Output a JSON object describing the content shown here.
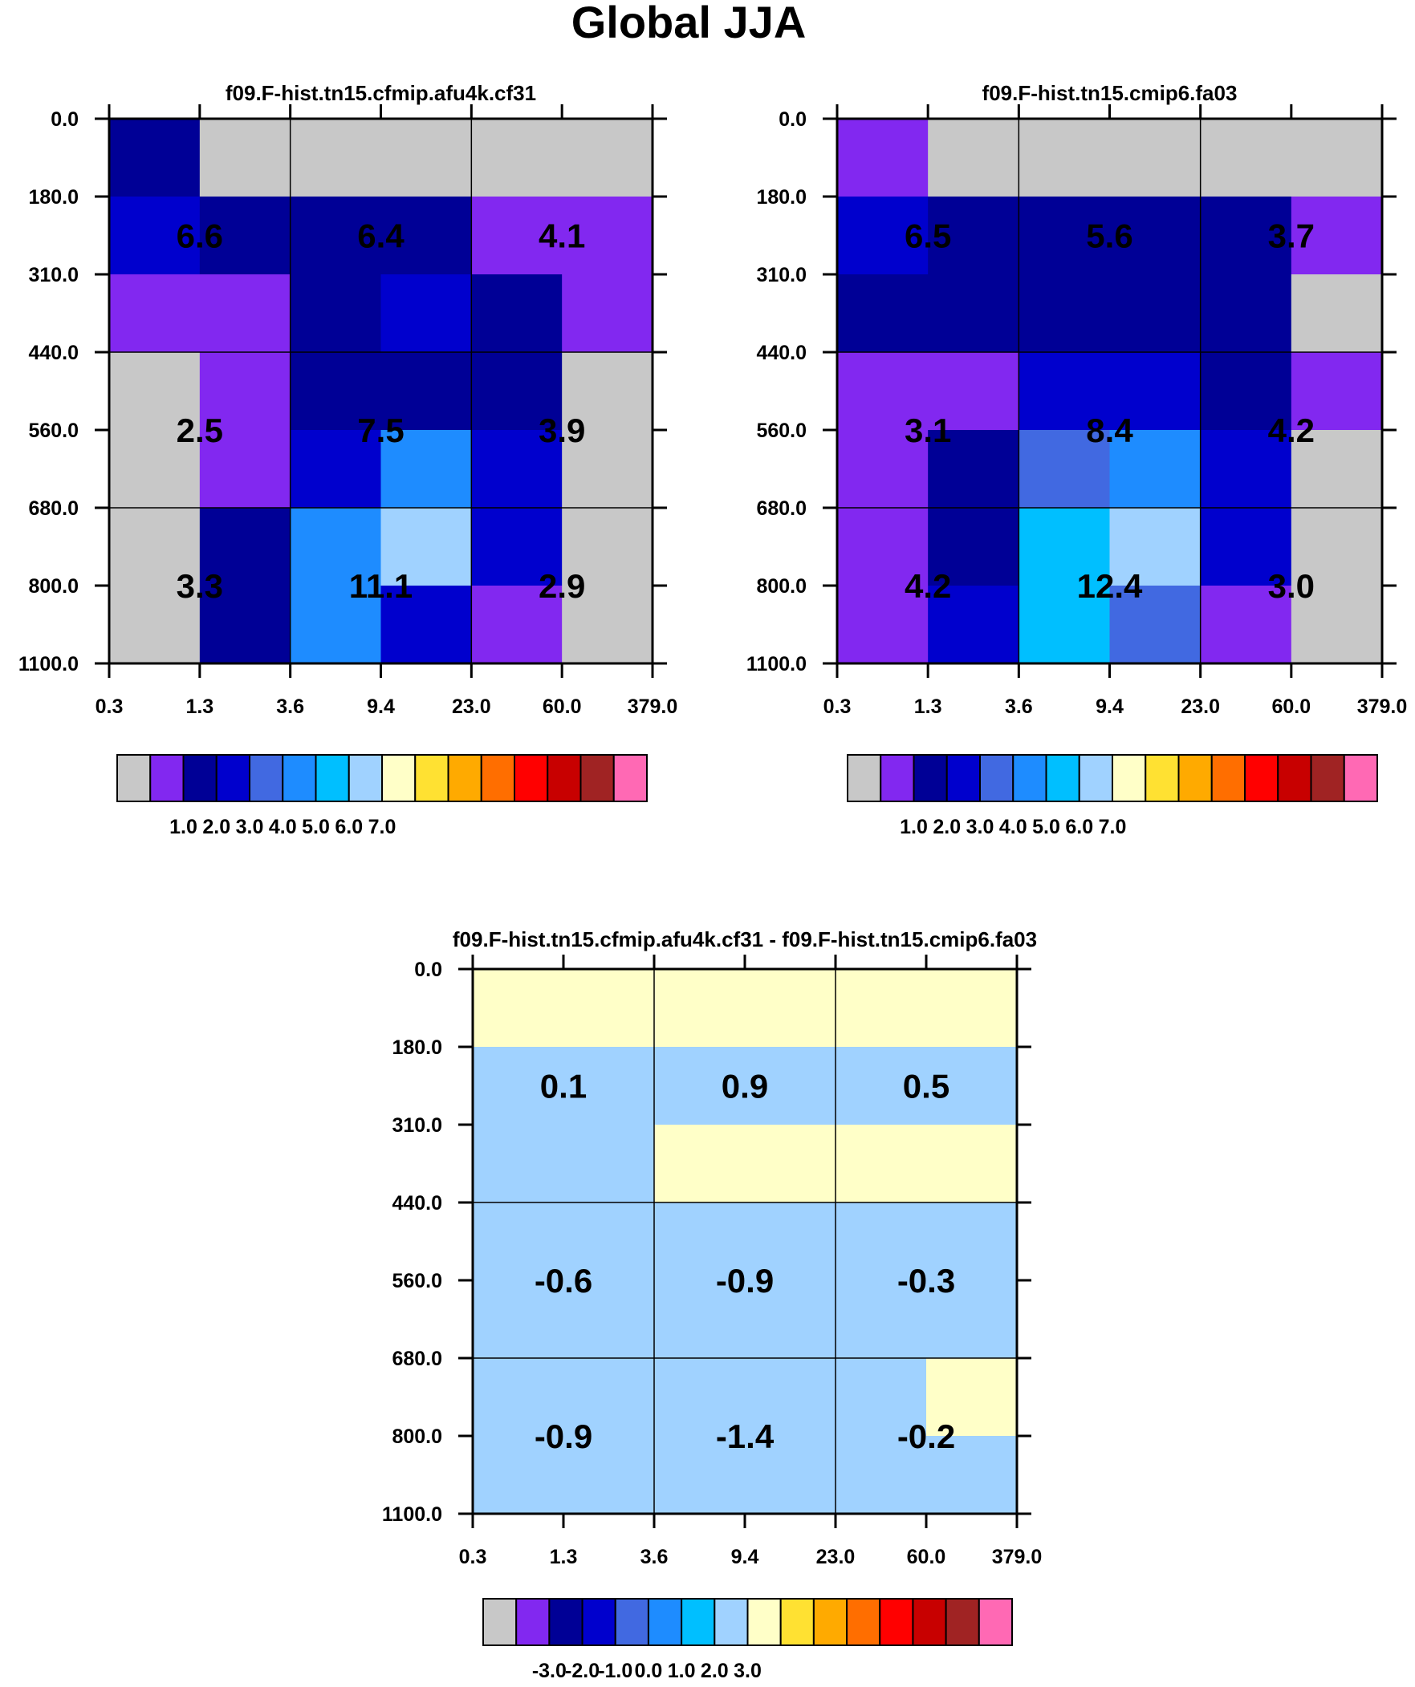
{
  "title": "Global JJA",
  "colors": {
    "ctrl_palette": [
      "#c8c8c8",
      "#8228f0",
      "#000096",
      "#0000cd",
      "#4169e1",
      "#1e8cff",
      "#00bfff",
      "#a0d2ff",
      "#ffffc8",
      "#ffe132",
      "#ffaa00",
      "#ff6e00",
      "#ff0000",
      "#c80000",
      "#a02323",
      "#ff69b4"
    ],
    "diff_palette": [
      "#c8c8c8",
      "#8228f0",
      "#000096",
      "#0000cd",
      "#4169e1",
      "#1e8cff",
      "#00bfff",
      "#a0d2ff",
      "#ffffc8",
      "#ffe132",
      "#ffaa00",
      "#ff6e00",
      "#ff0000",
      "#c80000",
      "#a02323",
      "#ff69b4"
    ]
  },
  "chart_data": [
    {
      "type": "heatmap",
      "title": "f09.F-hist.tn15.cfmip.afu4k.cf31",
      "xticks": [
        "0.3",
        "1.3",
        "3.6",
        "9.4",
        "23.0",
        "60.0",
        "379.0"
      ],
      "yticks": [
        "0.0",
        "180.0",
        "310.0",
        "440.0",
        "560.0",
        "680.0",
        "800.0",
        "1100.0"
      ],
      "cells": [
        [
          2,
          0,
          0,
          0,
          0,
          0
        ],
        [
          3,
          2,
          2,
          2,
          1,
          1
        ],
        [
          1,
          1,
          2,
          3,
          2,
          1
        ],
        [
          0,
          1,
          2,
          2,
          2,
          0
        ],
        [
          0,
          1,
          3,
          5,
          3,
          0
        ],
        [
          0,
          2,
          5,
          7,
          3,
          0
        ],
        [
          0,
          2,
          5,
          3,
          1,
          0
        ]
      ],
      "labels": [
        [
          "6.6",
          "6.4",
          "4.1"
        ],
        [
          "2.5",
          "7.5",
          "3.9"
        ],
        [
          "3.3",
          "11.1",
          "2.9"
        ]
      ],
      "colorbar": {
        "palette": "ctrl_palette",
        "ticks": [
          "1.0",
          "2.0",
          "3.0",
          "4.0",
          "5.0",
          "6.0",
          "7.0"
        ]
      }
    },
    {
      "type": "heatmap",
      "title": "f09.F-hist.tn15.cmip6.fa03",
      "xticks": [
        "0.3",
        "1.3",
        "3.6",
        "9.4",
        "23.0",
        "60.0",
        "379.0"
      ],
      "yticks": [
        "0.0",
        "180.0",
        "310.0",
        "440.0",
        "560.0",
        "680.0",
        "800.0",
        "1100.0"
      ],
      "cells": [
        [
          1,
          0,
          0,
          0,
          0,
          0
        ],
        [
          3,
          2,
          2,
          2,
          2,
          1
        ],
        [
          2,
          2,
          2,
          2,
          2,
          0
        ],
        [
          1,
          1,
          3,
          3,
          2,
          1
        ],
        [
          1,
          2,
          4,
          5,
          3,
          0
        ],
        [
          1,
          2,
          6,
          7,
          3,
          0
        ],
        [
          1,
          3,
          6,
          4,
          1,
          0
        ]
      ],
      "labels": [
        [
          "6.5",
          "5.6",
          "3.7"
        ],
        [
          "3.1",
          "8.4",
          "4.2"
        ],
        [
          "4.2",
          "12.4",
          "3.0"
        ]
      ],
      "colorbar": {
        "palette": "ctrl_palette",
        "ticks": [
          "1.0",
          "2.0",
          "3.0",
          "4.0",
          "5.0",
          "6.0",
          "7.0"
        ]
      }
    },
    {
      "type": "heatmap",
      "title": "f09.F-hist.tn15.cfmip.afu4k.cf31 - f09.F-hist.tn15.cmip6.fa03",
      "xticks": [
        "0.3",
        "1.3",
        "3.6",
        "9.4",
        "23.0",
        "60.0",
        "379.0"
      ],
      "yticks": [
        "0.0",
        "180.0",
        "310.0",
        "440.0",
        "560.0",
        "680.0",
        "800.0",
        "1100.0"
      ],
      "cells": [
        [
          8,
          8,
          8,
          8,
          8,
          8
        ],
        [
          7,
          7,
          7,
          7,
          7,
          7
        ],
        [
          7,
          7,
          8,
          8,
          8,
          8
        ],
        [
          7,
          7,
          7,
          7,
          7,
          7
        ],
        [
          7,
          7,
          7,
          7,
          7,
          7
        ],
        [
          7,
          7,
          7,
          7,
          7,
          8
        ],
        [
          7,
          7,
          7,
          7,
          7,
          7
        ]
      ],
      "labels": [
        [
          "0.1",
          "0.9",
          "0.5"
        ],
        [
          "-0.6",
          "-0.9",
          "-0.3"
        ],
        [
          "-0.9",
          "-1.4",
          "-0.2"
        ]
      ],
      "colorbar": {
        "palette": "diff_palette",
        "ticks": [
          "-3.0",
          "-2.0",
          "-1.0",
          "0.0",
          "1.0",
          "2.0",
          "3.0"
        ]
      }
    }
  ]
}
